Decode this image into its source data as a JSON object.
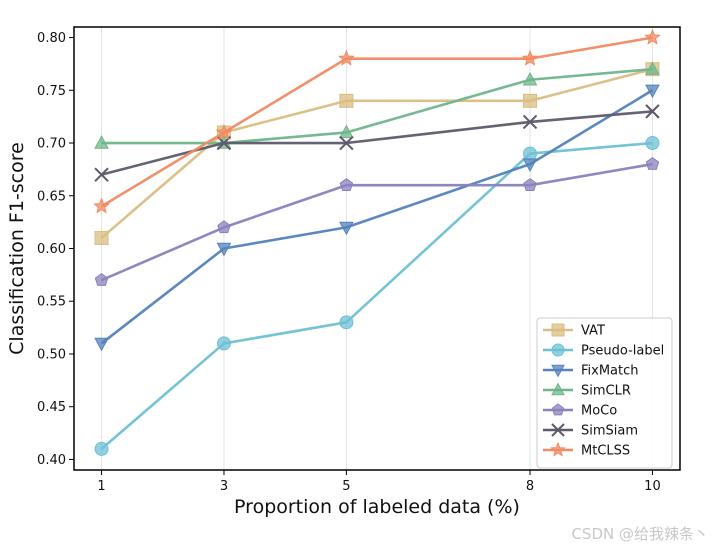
{
  "chart_data": {
    "type": "line",
    "title": "",
    "xlabel": "Proportion of labeled data (%)",
    "ylabel": "Classification F1-score",
    "x": [
      1,
      3,
      5,
      8,
      10
    ],
    "x_ticks": [
      "1",
      "3",
      "5",
      "8",
      "10"
    ],
    "xlim": [
      0.55,
      10.45
    ],
    "ylim": [
      0.39,
      0.81
    ],
    "y_ticks": [
      "0.40",
      "0.45",
      "0.50",
      "0.55",
      "0.60",
      "0.65",
      "0.70",
      "0.75",
      "0.80"
    ],
    "y_tick_values": [
      0.4,
      0.45,
      0.5,
      0.55,
      0.6,
      0.65,
      0.7,
      0.75,
      0.8
    ],
    "grid": "vertical",
    "legend_position": "lower-right",
    "series": [
      {
        "name": "VAT",
        "color": "#d9bd82",
        "marker": "square",
        "values": [
          0.61,
          0.71,
          0.74,
          0.74,
          0.77
        ]
      },
      {
        "name": "Pseudo-label",
        "color": "#6ec0d4",
        "marker": "circle",
        "values": [
          0.41,
          0.51,
          0.53,
          0.69,
          0.7
        ]
      },
      {
        "name": "FixMatch",
        "color": "#5382be",
        "marker": "triangle-down",
        "values": [
          0.51,
          0.6,
          0.62,
          0.68,
          0.75
        ]
      },
      {
        "name": "SimCLR",
        "color": "#6fb58b",
        "marker": "triangle-up",
        "values": [
          0.7,
          0.7,
          0.71,
          0.76,
          0.77
        ]
      },
      {
        "name": "MoCo",
        "color": "#8a81bd",
        "marker": "pentagon",
        "values": [
          0.57,
          0.62,
          0.66,
          0.66,
          0.68
        ]
      },
      {
        "name": "SimSiam",
        "color": "#5d5a6b",
        "marker": "x",
        "values": [
          0.67,
          0.7,
          0.7,
          0.72,
          0.73
        ]
      },
      {
        "name": "MtCLSS",
        "color": "#f08a62",
        "marker": "star",
        "values": [
          0.64,
          0.71,
          0.78,
          0.78,
          0.8
        ]
      }
    ]
  },
  "watermark": "CSDN @给我辣条丶"
}
